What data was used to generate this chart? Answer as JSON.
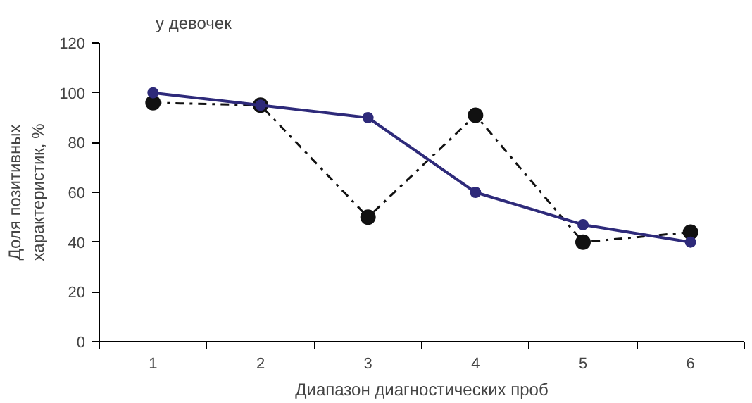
{
  "chart_data": {
    "type": "line",
    "title": "у девочек",
    "xlabel": "Диапазон диагностических проб",
    "ylabel": "Доля позитивных\nхарактеристик, %",
    "categories": [
      "1",
      "2",
      "3",
      "4",
      "5",
      "6"
    ],
    "series": [
      {
        "color": "#2e2a7a",
        "values": [
          100,
          95,
          90,
          60,
          47,
          40
        ],
        "line_style": "solid"
      },
      {
        "color": "#111111",
        "values": [
          96,
          95,
          50,
          91,
          40,
          44
        ],
        "line_style": "dashdot"
      }
    ],
    "ylim": [
      0,
      120
    ],
    "yticks": [
      0,
      20,
      40,
      60,
      80,
      100,
      120
    ],
    "grid": false,
    "marker": "circle"
  }
}
